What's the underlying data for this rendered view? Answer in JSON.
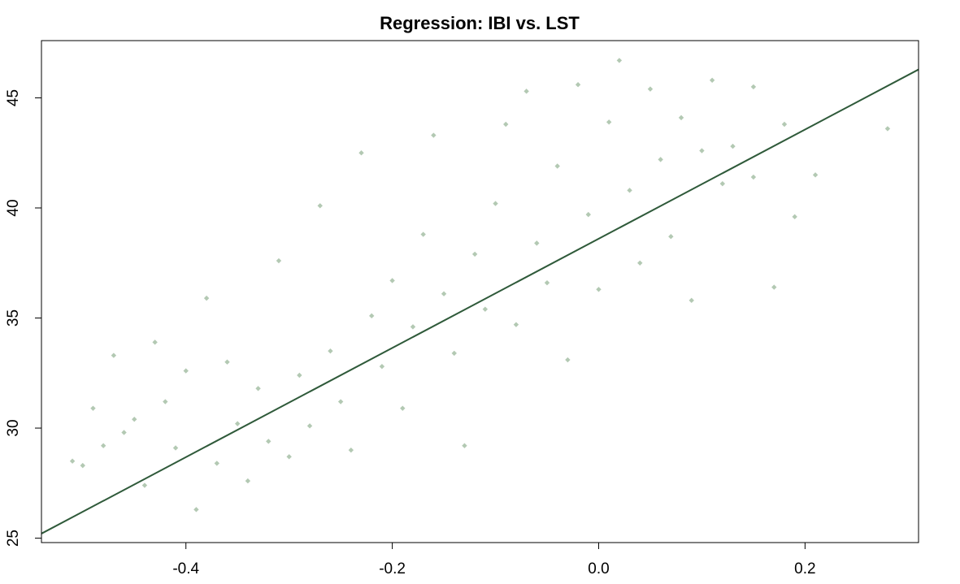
{
  "chart_data": {
    "type": "scatter",
    "title": "Regression: IBI vs. LST",
    "xlabel": "",
    "ylabel": "",
    "xlim": [
      -0.54,
      0.31
    ],
    "ylim": [
      24.8,
      47.6
    ],
    "x_ticks": [
      -0.4,
      -0.2,
      0.0,
      0.2
    ],
    "x_tick_labels": [
      "-0.4",
      "-0.2",
      "0.0",
      "0.2"
    ],
    "y_ticks": [
      25,
      30,
      35,
      40,
      45
    ],
    "y_tick_labels": [
      "25",
      "30",
      "35",
      "40",
      "45"
    ],
    "grid": false,
    "legend": "none",
    "point_color": "#b3c9b3",
    "line_color": "#2f5a3a",
    "regression_line": {
      "intercept": 38.6,
      "slope": 24.8
    },
    "points": [
      [
        -0.51,
        28.5
      ],
      [
        -0.5,
        28.3
      ],
      [
        -0.49,
        30.9
      ],
      [
        -0.48,
        29.2
      ],
      [
        -0.47,
        33.3
      ],
      [
        -0.46,
        29.8
      ],
      [
        -0.45,
        30.4
      ],
      [
        -0.44,
        27.4
      ],
      [
        -0.43,
        33.9
      ],
      [
        -0.42,
        31.2
      ],
      [
        -0.41,
        29.1
      ],
      [
        -0.4,
        32.6
      ],
      [
        -0.39,
        26.3
      ],
      [
        -0.38,
        35.9
      ],
      [
        -0.37,
        28.4
      ],
      [
        -0.36,
        33.0
      ],
      [
        -0.35,
        30.2
      ],
      [
        -0.34,
        27.6
      ],
      [
        -0.33,
        31.8
      ],
      [
        -0.32,
        29.4
      ],
      [
        -0.31,
        37.6
      ],
      [
        -0.3,
        28.7
      ],
      [
        -0.29,
        32.4
      ],
      [
        -0.28,
        30.1
      ],
      [
        -0.27,
        40.1
      ],
      [
        -0.26,
        33.5
      ],
      [
        -0.25,
        31.2
      ],
      [
        -0.24,
        29.0
      ],
      [
        -0.23,
        42.5
      ],
      [
        -0.22,
        35.1
      ],
      [
        -0.21,
        32.8
      ],
      [
        -0.2,
        36.7
      ],
      [
        -0.19,
        30.9
      ],
      [
        -0.18,
        34.6
      ],
      [
        -0.17,
        38.8
      ],
      [
        -0.16,
        43.3
      ],
      [
        -0.15,
        36.1
      ],
      [
        -0.14,
        33.4
      ],
      [
        -0.13,
        29.2
      ],
      [
        -0.12,
        37.9
      ],
      [
        -0.11,
        35.4
      ],
      [
        -0.1,
        40.2
      ],
      [
        -0.09,
        43.8
      ],
      [
        -0.08,
        34.7
      ],
      [
        -0.07,
        45.3
      ],
      [
        -0.06,
        38.4
      ],
      [
        -0.05,
        36.6
      ],
      [
        -0.04,
        41.9
      ],
      [
        -0.03,
        33.1
      ],
      [
        -0.02,
        45.6
      ],
      [
        -0.01,
        39.7
      ],
      [
        0.0,
        36.3
      ],
      [
        0.01,
        43.9
      ],
      [
        0.02,
        46.7
      ],
      [
        0.03,
        40.8
      ],
      [
        0.04,
        37.5
      ],
      [
        0.05,
        45.4
      ],
      [
        0.06,
        42.2
      ],
      [
        0.07,
        38.7
      ],
      [
        0.08,
        44.1
      ],
      [
        0.09,
        35.8
      ],
      [
        0.1,
        42.6
      ],
      [
        0.11,
        45.8
      ],
      [
        0.12,
        41.1
      ],
      [
        0.13,
        42.8
      ],
      [
        0.15,
        45.5
      ],
      [
        0.15,
        41.4
      ],
      [
        0.17,
        36.4
      ],
      [
        0.18,
        43.8
      ],
      [
        0.19,
        39.6
      ],
      [
        0.21,
        41.5
      ],
      [
        0.28,
        43.6
      ]
    ]
  }
}
